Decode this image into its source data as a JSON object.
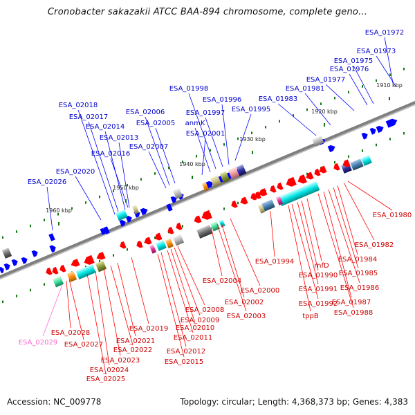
{
  "title": "Cronobacter sakazakii ATCC BAA-894 chromosome, complete geno...",
  "footer": {
    "accession": "Accession: NC_009778",
    "summary": "Topology: circular; Length: 4,368,373 bp; Genes: 4,383"
  },
  "ticks": [
    "1910 kbp",
    "1920 kbp",
    "1930 kbp",
    "1940 kbp",
    "1950 kbp",
    "1960 kbp"
  ],
  "forward_genes": [
    "ESA_01972",
    "ESA_01973",
    "ESA_01975",
    "ESA_01976",
    "ESA_01977",
    "ESA_01981",
    "ESA_01983",
    "ESA_01995",
    "ESA_01996",
    "ESA_01997",
    "ESA_01998",
    "anmK",
    "ESA_02001",
    "ESA_02005",
    "ESA_02006",
    "ESA_02007",
    "ESA_02013",
    "ESA_02014",
    "ESA_02016",
    "ESA_02017",
    "ESA_02018",
    "ESA_02020",
    "ESA_02026"
  ],
  "reverse_genes": [
    "ESA_01980",
    "ESA_01982",
    "ESA_01984",
    "ESA_01985",
    "ESA_01986",
    "ESA_01987",
    "ESA_01988",
    "ESA_01990",
    "ESA_01991",
    "ESA_01992",
    "tppB",
    "rnfD",
    "ESA_01994",
    "ESA_02000",
    "ESA_02002",
    "ESA_02003",
    "ESA_02004",
    "ESA_02008",
    "ESA_02009",
    "ESA_02010",
    "ESA_02011",
    "ESA_02012",
    "ESA_02015",
    "ESA_02019",
    "ESA_02021",
    "ESA_02022",
    "ESA_02023",
    "ESA_02024",
    "ESA_02025",
    "ESA_02027",
    "ESA_02028"
  ],
  "pseudo_genes": [
    "ESA_02029"
  ],
  "colors": {
    "forward": "#0000ff",
    "reverse": "#ff0000",
    "pseudo": "#ff66cc",
    "backbone": "#7f7f7f",
    "tick": "#117711",
    "label_forward": "#0000cc",
    "label_reverse": "#cc0000"
  }
}
